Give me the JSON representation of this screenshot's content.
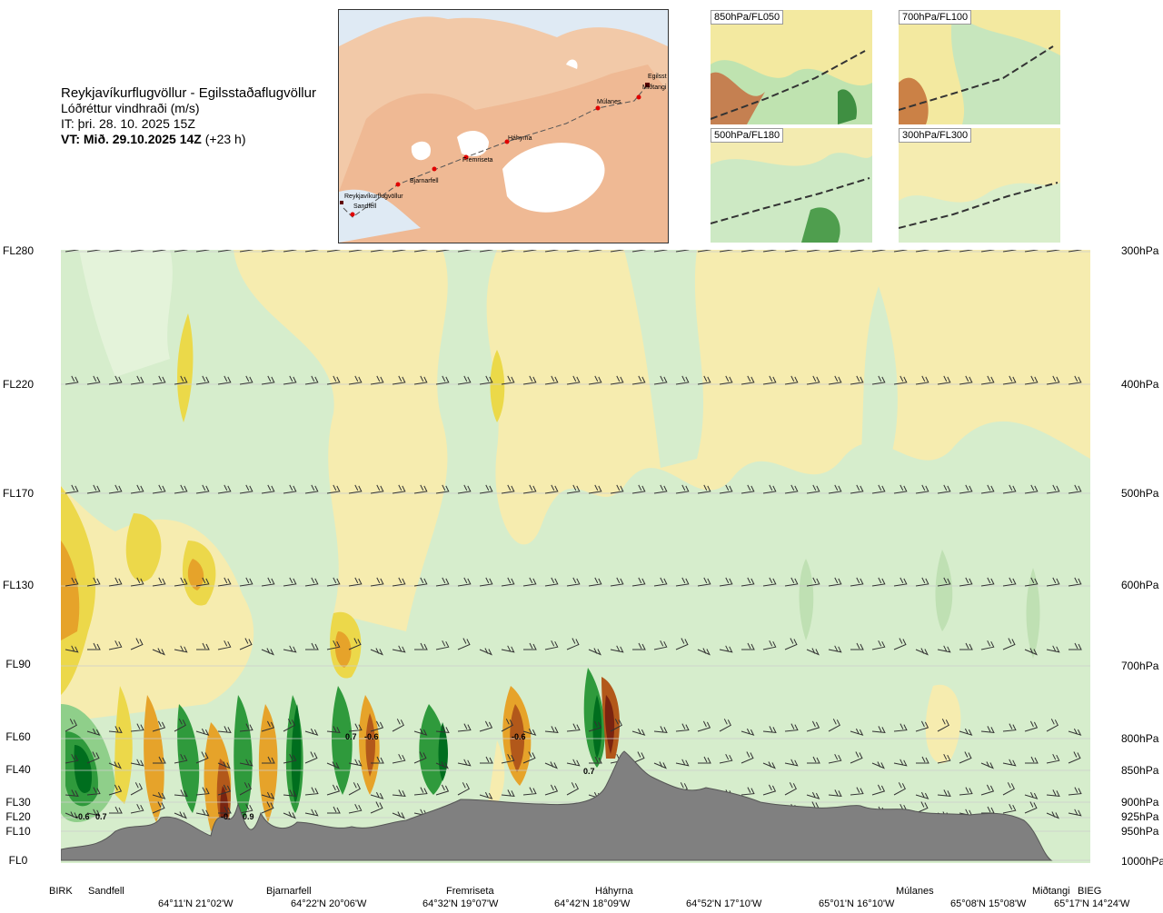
{
  "header": {
    "title": "Reykjavíkurflugvöllur - Egilsstaðaflugvöllur",
    "subtitle": "Lóðréttur vindhraði (m/s)",
    "issue_time": "IT: þri. 28. 10. 2025 15Z",
    "valid_time_bold": "VT: Mið. 29.10.2025 14Z",
    "valid_time_offset": "(+23 h)"
  },
  "map": {
    "stations": [
      "Reykjavíkurflugvöllur",
      "Sandfell",
      "Bjarnarfell",
      "Fremriseta",
      "Háhyrna",
      "Múlanes",
      "Egilsst",
      "Miðtangi"
    ]
  },
  "insets": [
    {
      "label": "850hPa/FL050"
    },
    {
      "label": "700hPa/FL100"
    },
    {
      "label": "500hPa/FL180"
    },
    {
      "label": "300hPa/FL300"
    }
  ],
  "chart_data": {
    "type": "heatmap",
    "title": "Lóðréttur vindhraði (m/s)",
    "ylabel_left_ticks": [
      "FL280",
      "FL220",
      "FL170",
      "FL130",
      "FL90",
      "FL60",
      "FL40",
      "FL30",
      "FL20",
      "FL10",
      "FL0"
    ],
    "ylabel_right_ticks": [
      "300hPa",
      "400hPa",
      "500hPa",
      "600hPa",
      "700hPa",
      "800hPa",
      "850hPa",
      "900hPa",
      "925hPa",
      "950hPa",
      "1000hPa"
    ],
    "pressure_levels_hpa": [
      300,
      400,
      500,
      600,
      700,
      800,
      850,
      900,
      925,
      950,
      1000
    ],
    "x_place_labels": [
      "BIRK",
      "Sandfell",
      "Bjarnarfell",
      "Fremriseta",
      "Háhyrna",
      "Múlanes",
      "Miðtangi",
      "BIEG"
    ],
    "x_coord_labels": [
      "64°11'N 21°02'W",
      "64°22'N 20°06'W",
      "64°32'N 19°07'W",
      "64°42'N 18°09'W",
      "64°52'N 17°10'W",
      "65°01'N 16°10'W",
      "65°08'N 15°08'W",
      "65°17'N 14°24'W"
    ],
    "value_annotations": [
      "-0.6",
      "0.7",
      "-0.",
      "0.9",
      "0.7",
      "-0.6",
      "-0.6",
      "0.7"
    ],
    "colors": {
      "strong_down": "#006e1e",
      "down": "#2f9a3c",
      "weak_down": "#8fcf8a",
      "near_zero_neg": "#d1ebc8",
      "near_zero": "#f5f8e8",
      "near_zero_pos": "#f7eeb0",
      "weak_up": "#ecd84a",
      "up": "#e6a32a",
      "strong_up": "#b2581a",
      "very_strong_up": "#7a2410",
      "terrain": "#808080"
    }
  }
}
